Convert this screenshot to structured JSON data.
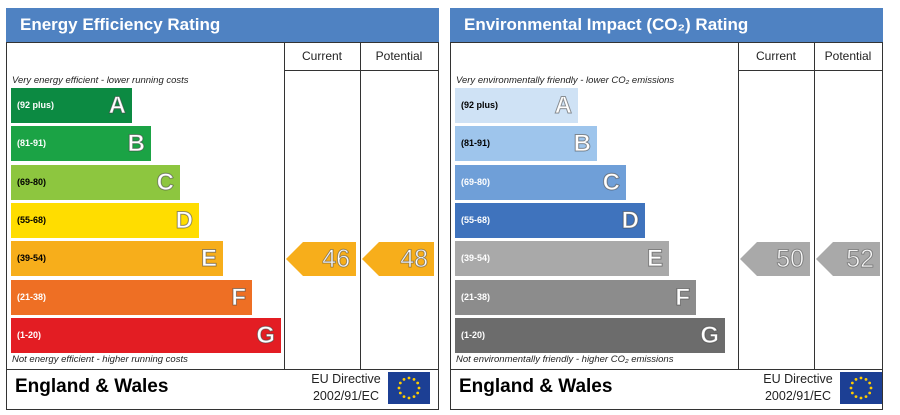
{
  "chart_data": [
    {
      "type": "bar",
      "title": "Energy Efficiency Rating",
      "columns": [
        "Current",
        "Potential"
      ],
      "top_note": "Very energy efficient - lower running costs",
      "bottom_note": "Not energy efficient - higher running costs",
      "bands": [
        {
          "range": "(92 plus)",
          "letter": "A",
          "color": "#0c8a42"
        },
        {
          "range": "(81-91)",
          "letter": "B",
          "color": "#1ba345"
        },
        {
          "range": "(69-80)",
          "letter": "C",
          "color": "#8dc63f"
        },
        {
          "range": "(55-68)",
          "letter": "D",
          "color": "#ffdd00"
        },
        {
          "range": "(39-54)",
          "letter": "E",
          "color": "#f7ae1b"
        },
        {
          "range": "(21-38)",
          "letter": "F",
          "color": "#ee6f24"
        },
        {
          "range": "(1-20)",
          "letter": "G",
          "color": "#e31d23"
        }
      ],
      "current": {
        "value": 46,
        "band": "E",
        "color": "#f7ae1b"
      },
      "potential": {
        "value": 48,
        "band": "E",
        "color": "#f7ae1b"
      },
      "footer": {
        "region": "England & Wales",
        "directive_line1": "EU Directive",
        "directive_line2": "2002/91/EC"
      }
    },
    {
      "type": "bar",
      "title": "Environmental Impact (CO₂) Rating",
      "columns": [
        "Current",
        "Potential"
      ],
      "top_note": "Very environmentally friendly - lower CO₂ emissions",
      "bottom_note": "Not environmentally friendly - higher CO₂ emissions",
      "bands": [
        {
          "range": "(92 plus)",
          "letter": "A",
          "color": "#cfe2f5"
        },
        {
          "range": "(81-91)",
          "letter": "B",
          "color": "#9ec5ec"
        },
        {
          "range": "(69-80)",
          "letter": "C",
          "color": "#6f9fd8"
        },
        {
          "range": "(55-68)",
          "letter": "D",
          "color": "#3f73bd"
        },
        {
          "range": "(39-54)",
          "letter": "E",
          "color": "#a9a9a9"
        },
        {
          "range": "(21-38)",
          "letter": "F",
          "color": "#8c8c8c"
        },
        {
          "range": "(1-20)",
          "letter": "G",
          "color": "#6c6c6c"
        }
      ],
      "current": {
        "value": 50,
        "band": "E",
        "color": "#a9a9a9"
      },
      "potential": {
        "value": 52,
        "band": "E",
        "color": "#a9a9a9"
      },
      "footer": {
        "region": "England & Wales",
        "directive_line1": "EU Directive",
        "directive_line2": "2002/91/EC"
      }
    }
  ]
}
